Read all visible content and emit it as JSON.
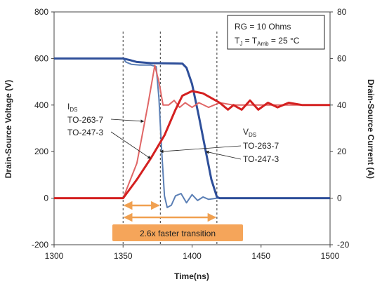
{
  "chart_data": {
    "type": "line",
    "title": "",
    "xlabel": "Time(ns)",
    "ylabel_left": "Drain-Source Voltage (V)",
    "ylabel_right": "Drain-Source Current (A)",
    "xlim": [
      1300,
      1500
    ],
    "ylim_left": [
      -200,
      800
    ],
    "ylim_right": [
      -20,
      80
    ],
    "xticks": [
      "1300",
      "1350",
      "1400",
      "1450",
      "1500"
    ],
    "yticks_left": [
      "-200",
      "0",
      "200",
      "400",
      "600",
      "800"
    ],
    "yticks_right": [
      "-20",
      "0",
      "20",
      "40",
      "60",
      "80"
    ],
    "grid": false,
    "legend_box": {
      "line1": "RG = 10 Ohms",
      "line2_prefix": "T",
      "line2_sub1": "J",
      "line2_mid": " = T",
      "line2_sub2": "Amb",
      "line2_suffix": " = 25 °C"
    },
    "series": [
      {
        "label": "VDS TO-263-7",
        "axis": "left",
        "color": "#5b7fb5",
        "points": [
          [
            1300,
            600
          ],
          [
            1350,
            600
          ],
          [
            1352,
            585
          ],
          [
            1356,
            575
          ],
          [
            1362,
            572
          ],
          [
            1370,
            572
          ],
          [
            1374,
            565
          ],
          [
            1376,
            430
          ],
          [
            1378,
            200
          ],
          [
            1380,
            10
          ],
          [
            1382,
            -40
          ],
          [
            1385,
            -30
          ],
          [
            1388,
            10
          ],
          [
            1392,
            20
          ],
          [
            1396,
            -20
          ],
          [
            1400,
            15
          ],
          [
            1404,
            -10
          ],
          [
            1408,
            5
          ],
          [
            1412,
            -5
          ],
          [
            1418,
            0
          ],
          [
            1500,
            0
          ]
        ]
      },
      {
        "label": "VDS TO-247-3",
        "axis": "left",
        "color": "#2e4f9a",
        "points": [
          [
            1300,
            600
          ],
          [
            1350,
            600
          ],
          [
            1355,
            593
          ],
          [
            1360,
            585
          ],
          [
            1370,
            580
          ],
          [
            1393,
            578
          ],
          [
            1396,
            560
          ],
          [
            1400,
            490
          ],
          [
            1405,
            350
          ],
          [
            1410,
            200
          ],
          [
            1414,
            80
          ],
          [
            1418,
            5
          ],
          [
            1420,
            0
          ],
          [
            1500,
            0
          ]
        ]
      },
      {
        "label": "IDS TO-263-7",
        "axis": "right",
        "color": "#e06666",
        "points": [
          [
            1300,
            0
          ],
          [
            1350,
            0
          ],
          [
            1360,
            15
          ],
          [
            1368,
            40
          ],
          [
            1373,
            57
          ],
          [
            1376,
            50
          ],
          [
            1379,
            40
          ],
          [
            1383,
            40
          ],
          [
            1387,
            42
          ],
          [
            1391,
            39
          ],
          [
            1395,
            41
          ],
          [
            1400,
            39
          ],
          [
            1405,
            41
          ],
          [
            1412,
            39
          ],
          [
            1420,
            41
          ],
          [
            1430,
            40
          ],
          [
            1500,
            40
          ]
        ]
      },
      {
        "label": "IDS TO-247-3",
        "axis": "right",
        "color": "#d42020",
        "points": [
          [
            1300,
            0
          ],
          [
            1350,
            0
          ],
          [
            1360,
            8
          ],
          [
            1370,
            17
          ],
          [
            1380,
            27
          ],
          [
            1388,
            38
          ],
          [
            1393,
            44
          ],
          [
            1400,
            46
          ],
          [
            1408,
            45
          ],
          [
            1414,
            43
          ],
          [
            1420,
            41
          ],
          [
            1426,
            38
          ],
          [
            1430,
            40
          ],
          [
            1436,
            38
          ],
          [
            1442,
            42
          ],
          [
            1448,
            38
          ],
          [
            1455,
            41
          ],
          [
            1462,
            39
          ],
          [
            1470,
            41
          ],
          [
            1480,
            40
          ],
          [
            1500,
            40
          ]
        ]
      }
    ],
    "vlines": [
      1350,
      1377,
      1418
    ],
    "arrow_label": "2.6x faster transition",
    "ids_label": "I",
    "ids_label_sub": "DS",
    "ids_label_1": "TO-263-7",
    "ids_label_2": "TO-247-3",
    "vds_label": "V",
    "vds_label_sub": "DS",
    "vds_label_1": "TO-263-7",
    "vds_label_2": "TO-247-3",
    "colors": {
      "arrow": "#f0a050",
      "callout_fill": "#f5a55a",
      "callout_text": "#2a2a2a"
    }
  }
}
